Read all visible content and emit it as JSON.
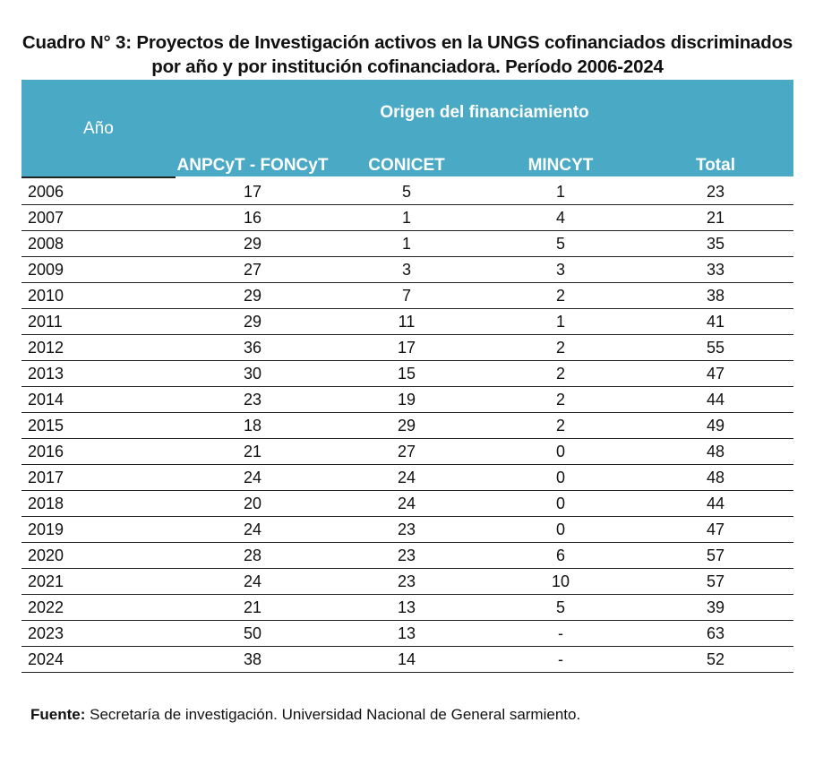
{
  "title": "Cuadro N° 3: Proyectos de Investigación activos en la UNGS cofinanciados discriminados por año y por institución cofinanciadora. Período 2006-2024",
  "header": {
    "year": "Año",
    "origin": "Origen del financiamiento",
    "columns": [
      "ANPCyT - FONCyT",
      "CONICET",
      "MINCYT",
      "Total"
    ]
  },
  "rows": [
    [
      "2006",
      "17",
      "5",
      "1",
      "23"
    ],
    [
      "2007",
      "16",
      "1",
      "4",
      "21"
    ],
    [
      "2008",
      "29",
      "1",
      "5",
      "35"
    ],
    [
      "2009",
      "27",
      "3",
      "3",
      "33"
    ],
    [
      "2010",
      "29",
      "7",
      "2",
      "38"
    ],
    [
      "2011",
      "29",
      "11",
      "1",
      "41"
    ],
    [
      "2012",
      "36",
      "17",
      "2",
      "55"
    ],
    [
      "2013",
      "30",
      "15",
      "2",
      "47"
    ],
    [
      "2014",
      "23",
      "19",
      "2",
      "44"
    ],
    [
      "2015",
      "18",
      "29",
      "2",
      "49"
    ],
    [
      "2016",
      "21",
      "27",
      "0",
      "48"
    ],
    [
      "2017",
      "24",
      "24",
      "0",
      "48"
    ],
    [
      "2018",
      "20",
      "24",
      "0",
      "44"
    ],
    [
      "2019",
      "24",
      "23",
      "0",
      "47"
    ],
    [
      "2020",
      "28",
      "23",
      "6",
      "57"
    ],
    [
      "2021",
      "24",
      "23",
      "10",
      "57"
    ],
    [
      "2022",
      "21",
      "13",
      "5",
      "39"
    ],
    [
      "2023",
      "50",
      "13",
      "-",
      "63"
    ],
    [
      "2024",
      "38",
      "14",
      "-",
      "52"
    ]
  ],
  "source": {
    "label": "Fuente:",
    "text": " Secretaría de investigación. Universidad Nacional de General sarmiento."
  },
  "colors": {
    "header_band": "#4aaac6",
    "header_text": "#ffffff",
    "rule": "#222222"
  }
}
